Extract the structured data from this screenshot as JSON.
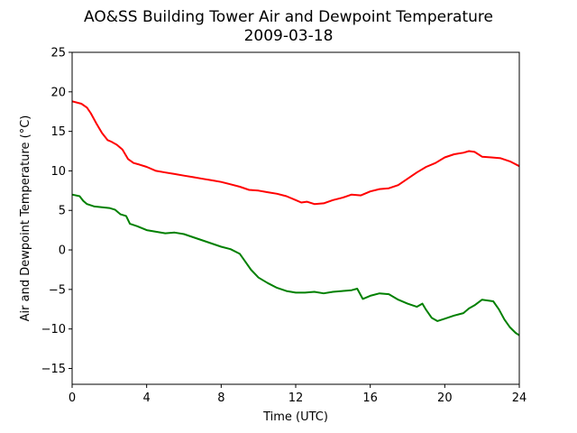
{
  "chart_data": {
    "type": "line",
    "title": "AO&SS Building Tower Air and Dewpoint Temperature",
    "subtitle": "2009-03-18",
    "xlabel": "Time (UTC)",
    "ylabel": "Air and Dewpoint Temperature (°C)",
    "xlim": [
      0,
      24
    ],
    "ylim": [
      -17,
      25
    ],
    "xticks": [
      0,
      4,
      8,
      12,
      16,
      20,
      24
    ],
    "xtick_labels": [
      "0",
      "4",
      "8",
      "12",
      "16",
      "20",
      "24"
    ],
    "yticks": [
      -15,
      -10,
      -5,
      0,
      5,
      10,
      15,
      20,
      25
    ],
    "ytick_labels": [
      "−15",
      "−10",
      "−5",
      "0",
      "5",
      "10",
      "15",
      "20",
      "25"
    ],
    "grid": false,
    "legend": "none",
    "series": [
      {
        "color": "#ff0000",
        "x": [
          0,
          0.5,
          0.8,
          1.0,
          1.3,
          1.6,
          1.9,
          2.1,
          2.4,
          2.7,
          3.0,
          3.3,
          3.6,
          4.0,
          4.5,
          5.0,
          5.5,
          6.0,
          6.5,
          7.0,
          7.5,
          8.0,
          8.5,
          9.0,
          9.5,
          10.0,
          10.5,
          11.0,
          11.5,
          12.0,
          12.3,
          12.6,
          13.0,
          13.5,
          14.0,
          14.5,
          15.0,
          15.5,
          16.0,
          16.5,
          17.0,
          17.5,
          18.0,
          18.5,
          19.0,
          19.5,
          20.0,
          20.5,
          21.0,
          21.3,
          21.6,
          22.0,
          22.5,
          23.0,
          23.5,
          24.0
        ],
        "y": [
          18.8,
          18.5,
          18.0,
          17.3,
          16.0,
          14.8,
          13.9,
          13.7,
          13.3,
          12.7,
          11.5,
          11.0,
          10.8,
          10.5,
          10.0,
          9.8,
          9.6,
          9.4,
          9.2,
          9.0,
          8.8,
          8.6,
          8.3,
          8.0,
          7.6,
          7.5,
          7.3,
          7.1,
          6.8,
          6.3,
          6.0,
          6.1,
          5.8,
          5.9,
          6.3,
          6.6,
          7.0,
          6.9,
          7.4,
          7.7,
          7.8,
          8.2,
          9.0,
          9.8,
          10.5,
          11.0,
          11.7,
          12.1,
          12.3,
          12.5,
          12.4,
          11.8,
          11.7,
          11.6,
          11.2,
          10.6
        ]
      },
      {
        "color": "#008000",
        "x": [
          0,
          0.4,
          0.6,
          0.8,
          1.2,
          1.6,
          2.0,
          2.3,
          2.6,
          2.9,
          3.1,
          3.5,
          4.0,
          4.5,
          5.0,
          5.5,
          6.0,
          6.5,
          7.0,
          7.5,
          8.0,
          8.5,
          9.0,
          9.3,
          9.6,
          10.0,
          10.5,
          11.0,
          11.5,
          12.0,
          12.5,
          13.0,
          13.5,
          14.0,
          14.5,
          15.0,
          15.3,
          15.6,
          16.0,
          16.5,
          17.0,
          17.5,
          18.0,
          18.5,
          18.8,
          19.0,
          19.3,
          19.6,
          20.0,
          20.5,
          21.0,
          21.3,
          21.6,
          22.0,
          22.3,
          22.6,
          22.9,
          23.2,
          23.5,
          23.8,
          24.0
        ],
        "y": [
          7.0,
          6.8,
          6.2,
          5.8,
          5.5,
          5.4,
          5.3,
          5.1,
          4.5,
          4.3,
          3.3,
          3.0,
          2.5,
          2.3,
          2.1,
          2.2,
          2.0,
          1.6,
          1.2,
          0.8,
          0.4,
          0.1,
          -0.5,
          -1.5,
          -2.5,
          -3.5,
          -4.2,
          -4.8,
          -5.2,
          -5.4,
          -5.4,
          -5.3,
          -5.5,
          -5.3,
          -5.2,
          -5.1,
          -4.9,
          -6.2,
          -5.8,
          -5.5,
          -5.6,
          -6.3,
          -6.8,
          -7.2,
          -6.8,
          -7.6,
          -8.6,
          -9.0,
          -8.7,
          -8.3,
          -8.0,
          -7.4,
          -7.0,
          -6.3,
          -6.4,
          -6.5,
          -7.5,
          -8.8,
          -9.8,
          -10.5,
          -10.8
        ]
      }
    ]
  }
}
